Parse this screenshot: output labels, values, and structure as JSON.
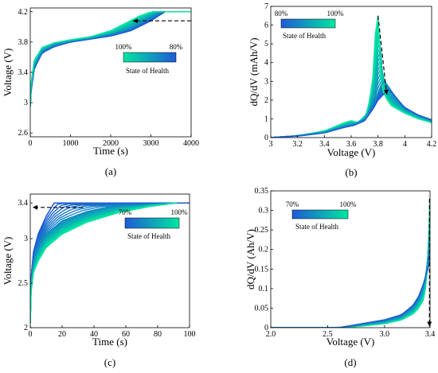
{
  "chart_data": [
    {
      "id": "a",
      "type": "line",
      "caption": "(a)",
      "xlabel": "Time (s)",
      "ylabel": "Voltage (V)",
      "xlim": [
        0,
        4000
      ],
      "ylim": [
        2.55,
        4.25
      ],
      "xticks": [
        0,
        1000,
        2000,
        3000,
        4000
      ],
      "yticks": [
        2.6,
        3,
        3.4,
        3.8,
        4.2
      ],
      "ytick_labels": [
        "2.6",
        "3",
        "3.4",
        "3.8",
        "4.2"
      ],
      "colorbar": {
        "left_label": "100%",
        "right_label": "80%",
        "title": "State of Health",
        "from": "#00e6a0",
        "to": "#1f5ad6"
      },
      "annotation": "dashed arrow pointing left toward decreasing charge time",
      "series": [
        {
          "soh": 80,
          "x": [
            0,
            20,
            100,
            300,
            600,
            1000,
            1500,
            2000,
            2500,
            3000,
            3200,
            3350,
            3350,
            4000
          ],
          "y": [
            2.95,
            3.15,
            3.45,
            3.66,
            3.74,
            3.8,
            3.84,
            3.88,
            3.95,
            4.08,
            4.15,
            4.2,
            4.2,
            4.2
          ]
        },
        {
          "soh": 87,
          "x": [
            0,
            20,
            100,
            300,
            600,
            1000,
            1500,
            2000,
            2500,
            2900,
            3100,
            3250,
            3250,
            4000
          ],
          "y": [
            2.95,
            3.18,
            3.48,
            3.68,
            3.76,
            3.81,
            3.85,
            3.9,
            3.98,
            4.1,
            4.16,
            4.2,
            4.2,
            4.2
          ]
        },
        {
          "soh": 93,
          "x": [
            0,
            20,
            100,
            300,
            600,
            1000,
            1500,
            2000,
            2400,
            2800,
            3000,
            3150,
            3150,
            4000
          ],
          "y": [
            2.95,
            3.22,
            3.52,
            3.71,
            3.78,
            3.82,
            3.86,
            3.92,
            4.0,
            4.12,
            4.17,
            4.2,
            4.2,
            4.2
          ]
        },
        {
          "soh": 100,
          "x": [
            0,
            20,
            100,
            300,
            600,
            1000,
            1500,
            2000,
            2300,
            2700,
            2900,
            3050,
            3050,
            4000
          ],
          "y": [
            2.95,
            3.25,
            3.56,
            3.73,
            3.79,
            3.83,
            3.87,
            3.95,
            4.03,
            4.14,
            4.18,
            4.2,
            4.2,
            4.2
          ]
        }
      ]
    },
    {
      "id": "b",
      "type": "line",
      "caption": "(b)",
      "xlabel": "Voltage (V)",
      "ylabel": "dQ/dV (mAh/V)",
      "xlim": [
        3,
        4.2
      ],
      "ylim": [
        0,
        7
      ],
      "xticks": [
        3,
        3.2,
        3.4,
        3.6,
        3.8,
        4,
        4.2
      ],
      "xtick_labels": [
        "3",
        "3.2",
        "3.4",
        "3.6",
        "3.8",
        "4",
        "4.2"
      ],
      "yticks": [
        0,
        1,
        2,
        3,
        4,
        5,
        6,
        7
      ],
      "colorbar": {
        "left_label": "80%",
        "right_label": "100%",
        "title": "State of Health",
        "from": "#1f5ad6",
        "to": "#00e6a0"
      },
      "annotation": "dashed arrow from main peak down to shifted peak",
      "series": [
        {
          "soh": 100,
          "x": [
            3.0,
            3.2,
            3.4,
            3.55,
            3.6,
            3.65,
            3.72,
            3.76,
            3.78,
            3.8,
            3.81,
            3.82,
            3.84,
            3.87,
            3.9,
            4.0,
            4.1,
            4.2
          ],
          "y": [
            0.0,
            0.1,
            0.35,
            0.8,
            0.9,
            0.8,
            1.3,
            3.0,
            5.5,
            6.5,
            5.0,
            3.2,
            2.4,
            2.0,
            1.7,
            1.3,
            1.0,
            0.8
          ]
        },
        {
          "soh": 93,
          "x": [
            3.0,
            3.2,
            3.4,
            3.55,
            3.6,
            3.65,
            3.72,
            3.77,
            3.8,
            3.82,
            3.83,
            3.85,
            3.88,
            3.92,
            4.0,
            4.1,
            4.2
          ],
          "y": [
            0.0,
            0.1,
            0.3,
            0.7,
            0.8,
            0.75,
            1.2,
            2.6,
            4.3,
            4.6,
            3.6,
            2.6,
            2.1,
            1.8,
            1.4,
            1.1,
            0.85
          ]
        },
        {
          "soh": 87,
          "x": [
            3.0,
            3.2,
            3.4,
            3.55,
            3.62,
            3.7,
            3.76,
            3.8,
            3.83,
            3.85,
            3.88,
            3.92,
            4.0,
            4.1,
            4.2
          ],
          "y": [
            0.0,
            0.1,
            0.28,
            0.6,
            0.7,
            1.0,
            1.8,
            2.4,
            2.9,
            3.0,
            2.7,
            2.2,
            1.5,
            1.15,
            0.9
          ]
        },
        {
          "soh": 80,
          "x": [
            3.0,
            3.2,
            3.4,
            3.55,
            3.62,
            3.7,
            3.76,
            3.8,
            3.84,
            3.87,
            3.9,
            3.95,
            4.0,
            4.1,
            4.2
          ],
          "y": [
            0.0,
            0.08,
            0.25,
            0.55,
            0.65,
            0.9,
            1.5,
            2.0,
            2.3,
            2.55,
            2.45,
            2.0,
            1.6,
            1.2,
            0.95
          ]
        }
      ]
    },
    {
      "id": "c",
      "type": "line",
      "caption": "(c)",
      "xlabel": "Time (s)",
      "ylabel": "Voltage (V)",
      "xlim": [
        0,
        100
      ],
      "ylim": [
        2,
        3.5
      ],
      "xticks": [
        0,
        20,
        40,
        60,
        80,
        100
      ],
      "yticks": [
        2,
        2.5,
        3,
        3.4
      ],
      "ytick_labels": [
        "2",
        "2.5",
        "3",
        "3.4"
      ],
      "colorbar": {
        "left_label": "70%",
        "right_label": "100%",
        "title": "State of Health",
        "from": "#1f5ad6",
        "to": "#00e6a0"
      },
      "annotation": "dashed arrow pointing left toward decreasing charge time",
      "series": [
        {
          "soh": 70,
          "x": [
            0,
            0.5,
            2,
            5,
            10,
            15,
            16,
            100
          ],
          "y": [
            2.05,
            2.55,
            2.85,
            3.05,
            3.25,
            3.4,
            3.4,
            3.4
          ]
        },
        {
          "soh": 80,
          "x": [
            0,
            0.5,
            2,
            5,
            10,
            20,
            35,
            50,
            92
          ],
          "y": [
            2.05,
            2.5,
            2.75,
            2.9,
            3.05,
            3.2,
            3.3,
            3.36,
            3.4
          ]
        },
        {
          "soh": 90,
          "x": [
            0,
            0.5,
            2,
            5,
            10,
            20,
            35,
            55,
            75,
            92
          ],
          "y": [
            2.05,
            2.45,
            2.68,
            2.82,
            2.98,
            3.12,
            3.24,
            3.33,
            3.38,
            3.4
          ]
        },
        {
          "soh": 100,
          "x": [
            0,
            0.5,
            2,
            5,
            10,
            20,
            35,
            55,
            75,
            92
          ],
          "y": [
            2.05,
            2.4,
            2.62,
            2.75,
            2.9,
            3.05,
            3.18,
            3.29,
            3.36,
            3.4
          ]
        }
      ]
    },
    {
      "id": "d",
      "type": "line",
      "caption": "(d)",
      "xlabel": "Voltage (V)",
      "ylabel": "dQ/dV (Ah/V)",
      "xlim": [
        2.0,
        3.4
      ],
      "ylim": [
        0,
        0.35
      ],
      "xticks": [
        2.0,
        2.5,
        3.0,
        3.4
      ],
      "xtick_labels": [
        "2.0",
        "2.5",
        "3.0",
        "3.4"
      ],
      "yticks": [
        0,
        0.05,
        0.1,
        0.15,
        0.2,
        0.25,
        0.3,
        0.35
      ],
      "ytick_labels": [
        "0",
        "0.05",
        "0.1",
        "0.15",
        "0.2",
        "0.25",
        "0.3",
        "0.35"
      ],
      "colorbar": {
        "left_label": "70%",
        "right_label": "100%",
        "title": "State of Health",
        "from": "#1f5ad6",
        "to": "#00e6a0"
      },
      "annotation": "dashed arrow pointing down along right edge",
      "series": [
        {
          "soh": 100,
          "x": [
            2.0,
            2.6,
            2.8,
            3.0,
            3.15,
            3.25,
            3.3,
            3.34,
            3.36,
            3.38,
            3.39,
            3.4
          ],
          "y": [
            0.0,
            0.0,
            0.004,
            0.01,
            0.02,
            0.035,
            0.05,
            0.07,
            0.1,
            0.16,
            0.25,
            0.33
          ]
        },
        {
          "soh": 90,
          "x": [
            2.0,
            2.6,
            2.8,
            3.0,
            3.15,
            3.25,
            3.3,
            3.34,
            3.36,
            3.38,
            3.39,
            3.4
          ],
          "y": [
            0.0,
            0.0,
            0.006,
            0.013,
            0.024,
            0.042,
            0.06,
            0.085,
            0.12,
            0.18,
            0.23,
            0.26
          ]
        },
        {
          "soh": 80,
          "x": [
            2.0,
            2.6,
            2.8,
            3.0,
            3.15,
            3.25,
            3.3,
            3.34,
            3.36,
            3.38,
            3.39,
            3.4
          ],
          "y": [
            0.0,
            0.0,
            0.008,
            0.016,
            0.028,
            0.05,
            0.07,
            0.1,
            0.13,
            0.17,
            0.19,
            0.2
          ]
        },
        {
          "soh": 70,
          "x": [
            2.0,
            2.6,
            2.8,
            3.0,
            3.15,
            3.25,
            3.3,
            3.34,
            3.36,
            3.38,
            3.39,
            3.4
          ],
          "y": [
            0.0,
            0.0,
            0.01,
            0.02,
            0.033,
            0.057,
            0.08,
            0.11,
            0.13,
            0.15,
            0.16,
            0.16
          ]
        }
      ]
    }
  ]
}
